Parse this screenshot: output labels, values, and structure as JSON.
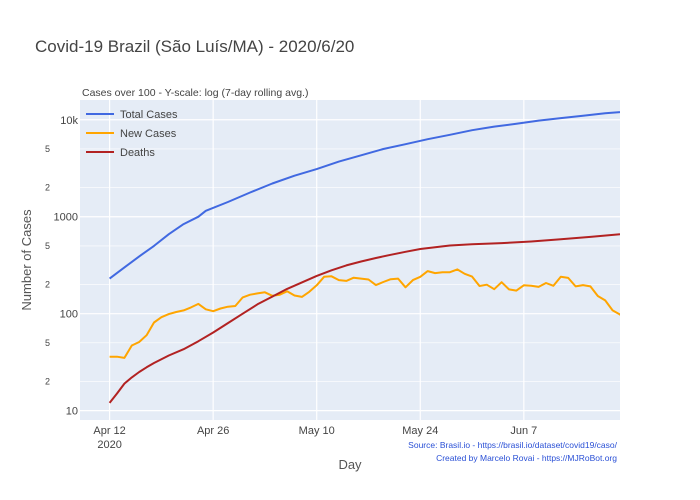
{
  "chart_data": {
    "type": "line",
    "title": "Covid-19 Brazil (São Luís/MA) - 2020/6/20",
    "subtitle": "Cases over 100 - Y-scale: log (7-day rolling avg.)",
    "xlabel": "Day",
    "ylabel": "Number of Cases",
    "yscale": "log",
    "xlim": [
      "2020-04-08",
      "2020-06-20"
    ],
    "ylim": [
      8,
      16000
    ],
    "grid": true,
    "legend_position": "top-left",
    "x_ticks": [
      {
        "date": "2020-04-12",
        "label": "Apr 12",
        "sublabel": "2020"
      },
      {
        "date": "2020-04-26",
        "label": "Apr 26",
        "sublabel": ""
      },
      {
        "date": "2020-05-10",
        "label": "May 10",
        "sublabel": ""
      },
      {
        "date": "2020-05-24",
        "label": "May 24",
        "sublabel": ""
      },
      {
        "date": "2020-06-07",
        "label": "Jun 7",
        "sublabel": ""
      }
    ],
    "y_major_ticks": [
      {
        "value": 10,
        "label": "10"
      },
      {
        "value": 100,
        "label": "100"
      },
      {
        "value": 1000,
        "label": "1000"
      },
      {
        "value": 10000,
        "label": "10k"
      }
    ],
    "y_minor_ticks": [
      {
        "value": 20,
        "label": "2"
      },
      {
        "value": 50,
        "label": "5"
      },
      {
        "value": 200,
        "label": "2"
      },
      {
        "value": 500,
        "label": "5"
      },
      {
        "value": 2000,
        "label": "2"
      },
      {
        "value": 5000,
        "label": "5"
      }
    ],
    "series": [
      {
        "name": "Total Cases",
        "color": "#4169e1",
        "points": [
          [
            "2020-04-12",
            230
          ],
          [
            "2020-04-14",
            300
          ],
          [
            "2020-04-16",
            390
          ],
          [
            "2020-04-18",
            500
          ],
          [
            "2020-04-20",
            660
          ],
          [
            "2020-04-22",
            840
          ],
          [
            "2020-04-24",
            1000
          ],
          [
            "2020-04-25",
            1150
          ],
          [
            "2020-04-28",
            1420
          ],
          [
            "2020-05-01",
            1780
          ],
          [
            "2020-05-04",
            2200
          ],
          [
            "2020-05-07",
            2650
          ],
          [
            "2020-05-10",
            3100
          ],
          [
            "2020-05-13",
            3700
          ],
          [
            "2020-05-16",
            4300
          ],
          [
            "2020-05-19",
            5000
          ],
          [
            "2020-05-22",
            5600
          ],
          [
            "2020-05-25",
            6300
          ],
          [
            "2020-05-28",
            7000
          ],
          [
            "2020-05-31",
            7800
          ],
          [
            "2020-06-03",
            8500
          ],
          [
            "2020-06-06",
            9100
          ],
          [
            "2020-06-09",
            9800
          ],
          [
            "2020-06-12",
            10400
          ],
          [
            "2020-06-15",
            11000
          ],
          [
            "2020-06-18",
            11700
          ],
          [
            "2020-06-20",
            12000
          ]
        ]
      },
      {
        "name": "New Cases",
        "color": "#ffa500",
        "points": [
          [
            "2020-04-12",
            36
          ],
          [
            "2020-04-13",
            36
          ],
          [
            "2020-04-14",
            35
          ],
          [
            "2020-04-15",
            47
          ],
          [
            "2020-04-16",
            51
          ],
          [
            "2020-04-17",
            60
          ],
          [
            "2020-04-18",
            81
          ],
          [
            "2020-04-19",
            92
          ],
          [
            "2020-04-20",
            99
          ],
          [
            "2020-04-21",
            104
          ],
          [
            "2020-04-22",
            108
          ],
          [
            "2020-04-23",
            116
          ],
          [
            "2020-04-24",
            126
          ],
          [
            "2020-04-25",
            111
          ],
          [
            "2020-04-26",
            106
          ],
          [
            "2020-04-27",
            113
          ],
          [
            "2020-04-28",
            118
          ],
          [
            "2020-04-29",
            120
          ],
          [
            "2020-04-30",
            147
          ],
          [
            "2020-05-01",
            157
          ],
          [
            "2020-05-02",
            162
          ],
          [
            "2020-05-03",
            166
          ],
          [
            "2020-05-04",
            153
          ],
          [
            "2020-05-05",
            157
          ],
          [
            "2020-05-06",
            170
          ],
          [
            "2020-05-07",
            154
          ],
          [
            "2020-05-08",
            149
          ],
          [
            "2020-05-09",
            168
          ],
          [
            "2020-05-10",
            196
          ],
          [
            "2020-05-11",
            240
          ],
          [
            "2020-05-12",
            243
          ],
          [
            "2020-05-13",
            222
          ],
          [
            "2020-05-14",
            218
          ],
          [
            "2020-05-15",
            235
          ],
          [
            "2020-05-16",
            230
          ],
          [
            "2020-05-17",
            225
          ],
          [
            "2020-05-18",
            197
          ],
          [
            "2020-05-19",
            212
          ],
          [
            "2020-05-20",
            227
          ],
          [
            "2020-05-21",
            230
          ],
          [
            "2020-05-22",
            187
          ],
          [
            "2020-05-23",
            222
          ],
          [
            "2020-05-24",
            240
          ],
          [
            "2020-05-25",
            275
          ],
          [
            "2020-05-26",
            262
          ],
          [
            "2020-05-27",
            268
          ],
          [
            "2020-05-28",
            268
          ],
          [
            "2020-05-29",
            286
          ],
          [
            "2020-05-30",
            258
          ],
          [
            "2020-05-31",
            241
          ],
          [
            "2020-06-01",
            193
          ],
          [
            "2020-06-02",
            199
          ],
          [
            "2020-06-03",
            179
          ],
          [
            "2020-06-04",
            211
          ],
          [
            "2020-06-05",
            178
          ],
          [
            "2020-06-06",
            173
          ],
          [
            "2020-06-07",
            196
          ],
          [
            "2020-06-08",
            194
          ],
          [
            "2020-06-09",
            189
          ],
          [
            "2020-06-10",
            207
          ],
          [
            "2020-06-11",
            194
          ],
          [
            "2020-06-12",
            240
          ],
          [
            "2020-06-13",
            234
          ],
          [
            "2020-06-14",
            191
          ],
          [
            "2020-06-15",
            197
          ],
          [
            "2020-06-16",
            191
          ],
          [
            "2020-06-17",
            152
          ],
          [
            "2020-06-18",
            137
          ],
          [
            "2020-06-19",
            108
          ],
          [
            "2020-06-20",
            98
          ],
          [
            "2020-06-21",
            82
          ]
        ]
      },
      {
        "name": "Deaths",
        "color": "#b22222",
        "points": [
          [
            "2020-04-12",
            12
          ],
          [
            "2020-04-13",
            15
          ],
          [
            "2020-04-14",
            19
          ],
          [
            "2020-04-15",
            22
          ],
          [
            "2020-04-16",
            25
          ],
          [
            "2020-04-17",
            28
          ],
          [
            "2020-04-18",
            31
          ],
          [
            "2020-04-20",
            37
          ],
          [
            "2020-04-22",
            43
          ],
          [
            "2020-04-24",
            52
          ],
          [
            "2020-04-26",
            64
          ],
          [
            "2020-04-28",
            80
          ],
          [
            "2020-04-30",
            100
          ],
          [
            "2020-05-02",
            125
          ],
          [
            "2020-05-04",
            150
          ],
          [
            "2020-05-06",
            180
          ],
          [
            "2020-05-08",
            210
          ],
          [
            "2020-05-10",
            245
          ],
          [
            "2020-05-12",
            280
          ],
          [
            "2020-05-14",
            315
          ],
          [
            "2020-05-16",
            345
          ],
          [
            "2020-05-18",
            375
          ],
          [
            "2020-05-20",
            405
          ],
          [
            "2020-05-22",
            435
          ],
          [
            "2020-05-24",
            465
          ],
          [
            "2020-05-26",
            485
          ],
          [
            "2020-05-28",
            505
          ],
          [
            "2020-05-31",
            520
          ],
          [
            "2020-06-04",
            535
          ],
          [
            "2020-06-08",
            555
          ],
          [
            "2020-06-12",
            585
          ],
          [
            "2020-06-16",
            620
          ],
          [
            "2020-06-20",
            660
          ]
        ]
      }
    ],
    "source_lines": [
      "Source: Brasil.io - https://brasil.io/dataset/covid19/caso/",
      "Created by Marcelo Rovai - https://MJRoBot.org"
    ]
  }
}
